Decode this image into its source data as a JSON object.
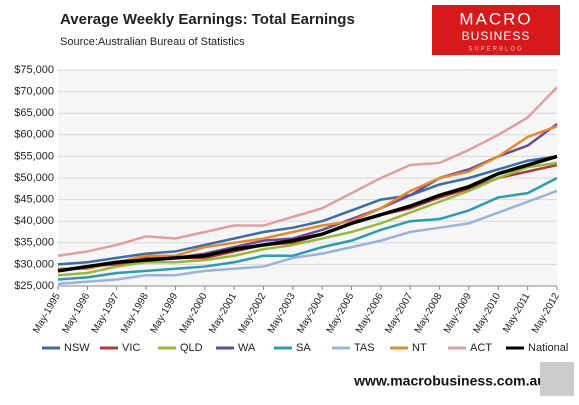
{
  "chart_data": {
    "type": "line",
    "title": "Average Weekly Earnings: Total Earnings",
    "subtitle": "Source:Australian Bureau of Statistics",
    "logo": {
      "line1": "MACRO",
      "line2": "BUSINESS",
      "line3": "SUPERBLOG"
    },
    "footer": "www.macrobusiness.com.au",
    "x": [
      "May-1995",
      "May-1996",
      "May-1997",
      "May-1998",
      "May-1999",
      "May-2000",
      "May-2001",
      "May-2002",
      "May-2003",
      "May-2004",
      "May-2005",
      "May-2006",
      "May-2007",
      "May-2008",
      "May-2009",
      "May-2010",
      "May-2011",
      "May-2012"
    ],
    "ylim": [
      25000,
      75000
    ],
    "yticks": [
      {
        "value": 25000,
        "label": "$25,000"
      },
      {
        "value": 30000,
        "label": "$30,000"
      },
      {
        "value": 35000,
        "label": "$35,000"
      },
      {
        "value": 40000,
        "label": "$40,000"
      },
      {
        "value": 45000,
        "label": "$45,000"
      },
      {
        "value": 50000,
        "label": "$50,000"
      },
      {
        "value": 55000,
        "label": "$55,000"
      },
      {
        "value": 60000,
        "label": "$60,000"
      },
      {
        "value": 65000,
        "label": "$65,000"
      },
      {
        "value": 70000,
        "label": "$70,000"
      },
      {
        "value": 75000,
        "label": "$75,000"
      }
    ],
    "grid": true,
    "series": [
      {
        "name": "NSW",
        "color": "#3a6ea5",
        "values": [
          30000,
          30500,
          31500,
          32500,
          33000,
          34500,
          36000,
          37500,
          38500,
          40000,
          42500,
          45000,
          46000,
          48500,
          50000,
          52000,
          54000,
          55000
        ]
      },
      {
        "name": "VIC",
        "color": "#b03a3a",
        "values": [
          28500,
          29500,
          30000,
          31000,
          31500,
          31500,
          33000,
          34500,
          35000,
          37000,
          39500,
          41500,
          43000,
          45500,
          47500,
          50000,
          51500,
          53000
        ]
      },
      {
        "name": "QLD",
        "color": "#9ab83a",
        "values": [
          27500,
          28000,
          29500,
          30500,
          30500,
          31000,
          32000,
          33500,
          34500,
          36000,
          37500,
          39500,
          42000,
          44500,
          47000,
          50000,
          52500,
          53500
        ]
      },
      {
        "name": "WA",
        "color": "#6a4a9a",
        "values": [
          28500,
          29500,
          30500,
          31500,
          31500,
          32500,
          34000,
          35500,
          36000,
          38000,
          40500,
          43000,
          46000,
          50000,
          52000,
          55000,
          57500,
          62500
        ]
      },
      {
        "name": "SA",
        "color": "#2e9bb0",
        "values": [
          26500,
          27000,
          28000,
          28500,
          29000,
          29500,
          30500,
          32000,
          32000,
          34000,
          35500,
          38000,
          40000,
          40500,
          42500,
          45500,
          46500,
          50000
        ]
      },
      {
        "name": "TAS",
        "color": "#9bb3dc",
        "values": [
          25500,
          26000,
          26500,
          27500,
          27500,
          28500,
          29000,
          29500,
          31500,
          32500,
          34000,
          35500,
          37500,
          38500,
          39500,
          42000,
          44500,
          47000
        ]
      },
      {
        "name": "NT",
        "color": "#e8882e",
        "values": [
          29000,
          29000,
          30500,
          32000,
          32000,
          34000,
          35000,
          36000,
          37500,
          39000,
          40000,
          43000,
          47000,
          50000,
          51500,
          55000,
          59500,
          62000
        ]
      },
      {
        "name": "ACT",
        "color": "#e0a0a0",
        "values": [
          32000,
          33000,
          34500,
          36500,
          36000,
          37500,
          39000,
          39000,
          41000,
          43000,
          46500,
          50000,
          53000,
          53500,
          56500,
          60000,
          64000,
          71000
        ]
      },
      {
        "name": "National",
        "color": "#000000",
        "values": [
          28500,
          29500,
          30500,
          31000,
          31500,
          32000,
          33500,
          34500,
          35500,
          37000,
          39500,
          41500,
          43500,
          46000,
          48000,
          51000,
          53000,
          55000
        ]
      }
    ]
  }
}
